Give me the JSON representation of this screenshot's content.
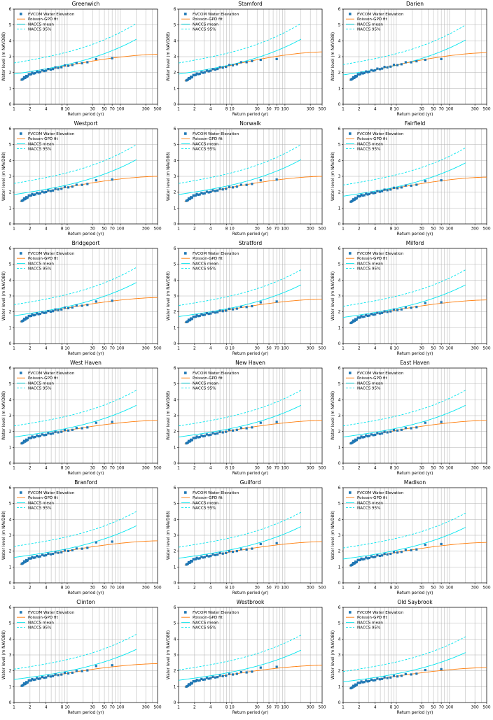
{
  "shared": {
    "type": "line+scatter",
    "xlabel": "Return period (yr)",
    "ylabel": "Water level (m NAVD88)",
    "xscale": "log",
    "xlim": [
      1,
      500
    ],
    "ylim": [
      0,
      6
    ],
    "xticks": [
      1,
      2,
      4,
      8,
      10,
      30,
      50,
      70,
      100,
      300,
      500
    ],
    "xtick_labels": [
      "1",
      "2",
      "4",
      "8",
      "10",
      "30",
      "50",
      "70",
      "100",
      "300",
      "500"
    ],
    "yticks": [
      0,
      1,
      2,
      3,
      4,
      5,
      6
    ],
    "ytick_labels": [
      "0",
      "1",
      "2",
      "3",
      "4",
      "5",
      "6"
    ],
    "legend_position": "upper-left",
    "legend": [
      "FVCOM Water Elevation",
      "Poisson-GPD fit",
      "NACCS mean",
      "NACCS 95%"
    ],
    "colors": {
      "fvcom": "#1f77b4",
      "gpd": "#ff7f0e",
      "naccs": "#00e5ee",
      "grid": "#b0b0b0"
    },
    "gpd_x_range": [
      1.3,
      500
    ],
    "naccs_x_range": [
      1,
      200
    ]
  },
  "chart_data": [
    {
      "title": "Greenwich",
      "fvcom_max": 2.9,
      "gpd": {
        "y2": 1.9,
        "y500": 3.15
      },
      "naccs_mean": {
        "y1": 1.9,
        "y200": 4.1
      },
      "naccs_95": {
        "y1": 2.6,
        "y200": 5.1
      }
    },
    {
      "title": "Stamford",
      "fvcom_max": 2.85,
      "gpd": {
        "y2": 1.85,
        "y500": 3.3
      },
      "naccs_mean": {
        "y1": 1.9,
        "y200": 4.1
      },
      "naccs_95": {
        "y1": 2.6,
        "y200": 5.1
      }
    },
    {
      "title": "Darien",
      "fvcom_max": 2.85,
      "gpd": {
        "y2": 1.9,
        "y500": 3.25
      },
      "naccs_mean": {
        "y1": 1.85,
        "y200": 4.05
      },
      "naccs_95": {
        "y1": 2.5,
        "y200": 5.0
      }
    },
    {
      "title": "Westport",
      "fvcom_max": 2.8,
      "gpd": {
        "y2": 1.8,
        "y500": 3.0
      },
      "naccs_mean": {
        "y1": 1.85,
        "y200": 4.05
      },
      "naccs_95": {
        "y1": 2.55,
        "y200": 5.0
      }
    },
    {
      "title": "Norwalk",
      "fvcom_max": 2.8,
      "gpd": {
        "y2": 1.8,
        "y500": 3.0
      },
      "naccs_mean": {
        "y1": 1.85,
        "y200": 4.05
      },
      "naccs_95": {
        "y1": 2.55,
        "y200": 5.0
      }
    },
    {
      "title": "Fairfield",
      "fvcom_max": 2.75,
      "gpd": {
        "y2": 1.75,
        "y500": 2.95
      },
      "naccs_mean": {
        "y1": 1.75,
        "y200": 3.85
      },
      "naccs_95": {
        "y1": 2.45,
        "y200": 4.8
      }
    },
    {
      "title": "Bridgeport",
      "fvcom_max": 2.7,
      "gpd": {
        "y2": 1.75,
        "y500": 2.9
      },
      "naccs_mean": {
        "y1": 1.75,
        "y200": 3.85
      },
      "naccs_95": {
        "y1": 2.45,
        "y200": 4.8
      }
    },
    {
      "title": "Stratford",
      "fvcom_max": 2.65,
      "gpd": {
        "y2": 1.7,
        "y500": 2.8
      },
      "naccs_mean": {
        "y1": 1.7,
        "y200": 3.7
      },
      "naccs_95": {
        "y1": 2.4,
        "y200": 4.65
      }
    },
    {
      "title": "Milford",
      "fvcom_max": 2.6,
      "gpd": {
        "y2": 1.65,
        "y500": 2.75
      },
      "naccs_mean": {
        "y1": 1.65,
        "y200": 3.7
      },
      "naccs_95": {
        "y1": 2.35,
        "y200": 4.65
      }
    },
    {
      "title": "West Haven",
      "fvcom_max": 2.6,
      "gpd": {
        "y2": 1.6,
        "y500": 2.7
      },
      "naccs_mean": {
        "y1": 1.65,
        "y200": 3.65
      },
      "naccs_95": {
        "y1": 2.35,
        "y200": 4.6
      }
    },
    {
      "title": "New Haven",
      "fvcom_max": 2.6,
      "gpd": {
        "y2": 1.6,
        "y500": 2.7
      },
      "naccs_mean": {
        "y1": 1.65,
        "y200": 3.65
      },
      "naccs_95": {
        "y1": 2.35,
        "y200": 4.6
      }
    },
    {
      "title": "East Haven",
      "fvcom_max": 2.6,
      "gpd": {
        "y2": 1.6,
        "y500": 2.7
      },
      "naccs_mean": {
        "y1": 1.65,
        "y200": 3.65
      },
      "naccs_95": {
        "y1": 2.35,
        "y200": 4.6
      }
    },
    {
      "title": "Branford",
      "fvcom_max": 2.6,
      "gpd": {
        "y2": 1.55,
        "y500": 2.65
      },
      "naccs_mean": {
        "y1": 1.6,
        "y200": 3.6
      },
      "naccs_95": {
        "y1": 2.3,
        "y200": 4.5
      }
    },
    {
      "title": "Guilford",
      "fvcom_max": 2.5,
      "gpd": {
        "y2": 1.5,
        "y500": 2.6
      },
      "naccs_mean": {
        "y1": 1.55,
        "y200": 3.55
      },
      "naccs_95": {
        "y1": 2.25,
        "y200": 4.45
      }
    },
    {
      "title": "Madison",
      "fvcom_max": 2.45,
      "gpd": {
        "y2": 1.45,
        "y500": 2.55
      },
      "naccs_mean": {
        "y1": 1.5,
        "y200": 3.5
      },
      "naccs_95": {
        "y1": 2.2,
        "y200": 4.4
      }
    },
    {
      "title": "Clinton",
      "fvcom_max": 2.35,
      "gpd": {
        "y2": 1.4,
        "y500": 2.45
      },
      "naccs_mean": {
        "y1": 1.45,
        "y200": 3.35
      },
      "naccs_95": {
        "y1": 2.1,
        "y200": 4.3
      }
    },
    {
      "title": "Westbrook",
      "fvcom_max": 2.25,
      "gpd": {
        "y2": 1.35,
        "y500": 2.35
      },
      "naccs_mean": {
        "y1": 1.4,
        "y200": 3.3
      },
      "naccs_95": {
        "y1": 2.05,
        "y200": 4.25
      }
    },
    {
      "title": "Old Saybrook",
      "fvcom_max": 2.1,
      "gpd": {
        "y2": 1.25,
        "y500": 2.2
      },
      "naccs_mean": {
        "y1": 1.3,
        "y200": 3.15
      },
      "naccs_95": {
        "y1": 1.95,
        "y200": 4.15
      }
    }
  ]
}
